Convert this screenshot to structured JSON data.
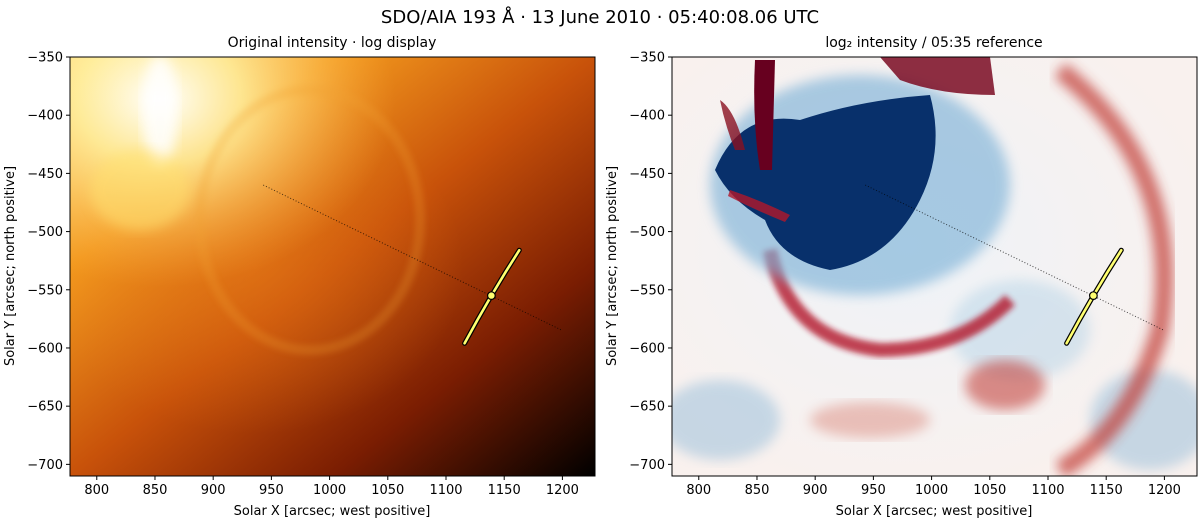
{
  "figure": {
    "title": "SDO/AIA 193 Å · 13 June 2010 · 05:40:08.06 UTC"
  },
  "chart_data": [
    {
      "type": "heatmap",
      "title": "Original intensity · log display",
      "xlabel": "Solar X [arcsec; west positive]",
      "ylabel": "Solar Y [arcsec; north positive]",
      "xlim": [
        777,
        1228
      ],
      "ylim": [
        -710,
        -350
      ],
      "xticks": [
        800,
        850,
        900,
        950,
        1000,
        1050,
        1100,
        1150,
        1200
      ],
      "yticks": [
        -350,
        -400,
        -450,
        -500,
        -550,
        -600,
        -650,
        -700
      ],
      "colormap": "afmhot",
      "colormap_colors": [
        "#000000",
        "#5a0d00",
        "#a83200",
        "#e07a10",
        "#ffd24a",
        "#ffffff"
      ],
      "scale": "log",
      "profile_line": {
        "x": [
          943,
          1200
        ],
        "y": [
          -460,
          -585
        ]
      },
      "arc_marker": {
        "x": [
          1116,
          1127,
          1139,
          1151,
          1163
        ],
        "y": [
          -596,
          -576,
          -555,
          -535,
          -516
        ]
      },
      "point_marker": {
        "x": 1139,
        "y": -555
      },
      "marker_color": "#ffff70"
    },
    {
      "type": "heatmap",
      "title": "log₂ intensity / 05:35 reference",
      "xlabel": "Solar X [arcsec; west positive]",
      "ylabel": "Solar Y [arcsec; north positive]",
      "xlim": [
        777,
        1228
      ],
      "ylim": [
        -710,
        -350
      ],
      "xticks": [
        800,
        850,
        900,
        950,
        1000,
        1050,
        1100,
        1150,
        1200
      ],
      "yticks": [
        -350,
        -400,
        -450,
        -500,
        -550,
        -600,
        -650,
        -700
      ],
      "colormap": "RdBu_r",
      "colormap_colors": [
        "#053061",
        "#2166ac",
        "#92c5de",
        "#f7f7f7",
        "#f4a582",
        "#b2182b",
        "#67001f"
      ],
      "scale": "diverging",
      "profile_line": {
        "x": [
          943,
          1200
        ],
        "y": [
          -460,
          -585
        ]
      },
      "arc_marker": {
        "x": [
          1116,
          1127,
          1139,
          1151,
          1163
        ],
        "y": [
          -596,
          -576,
          -555,
          -535,
          -516
        ]
      },
      "point_marker": {
        "x": 1139,
        "y": -555
      },
      "marker_color": "#ffff70"
    }
  ]
}
